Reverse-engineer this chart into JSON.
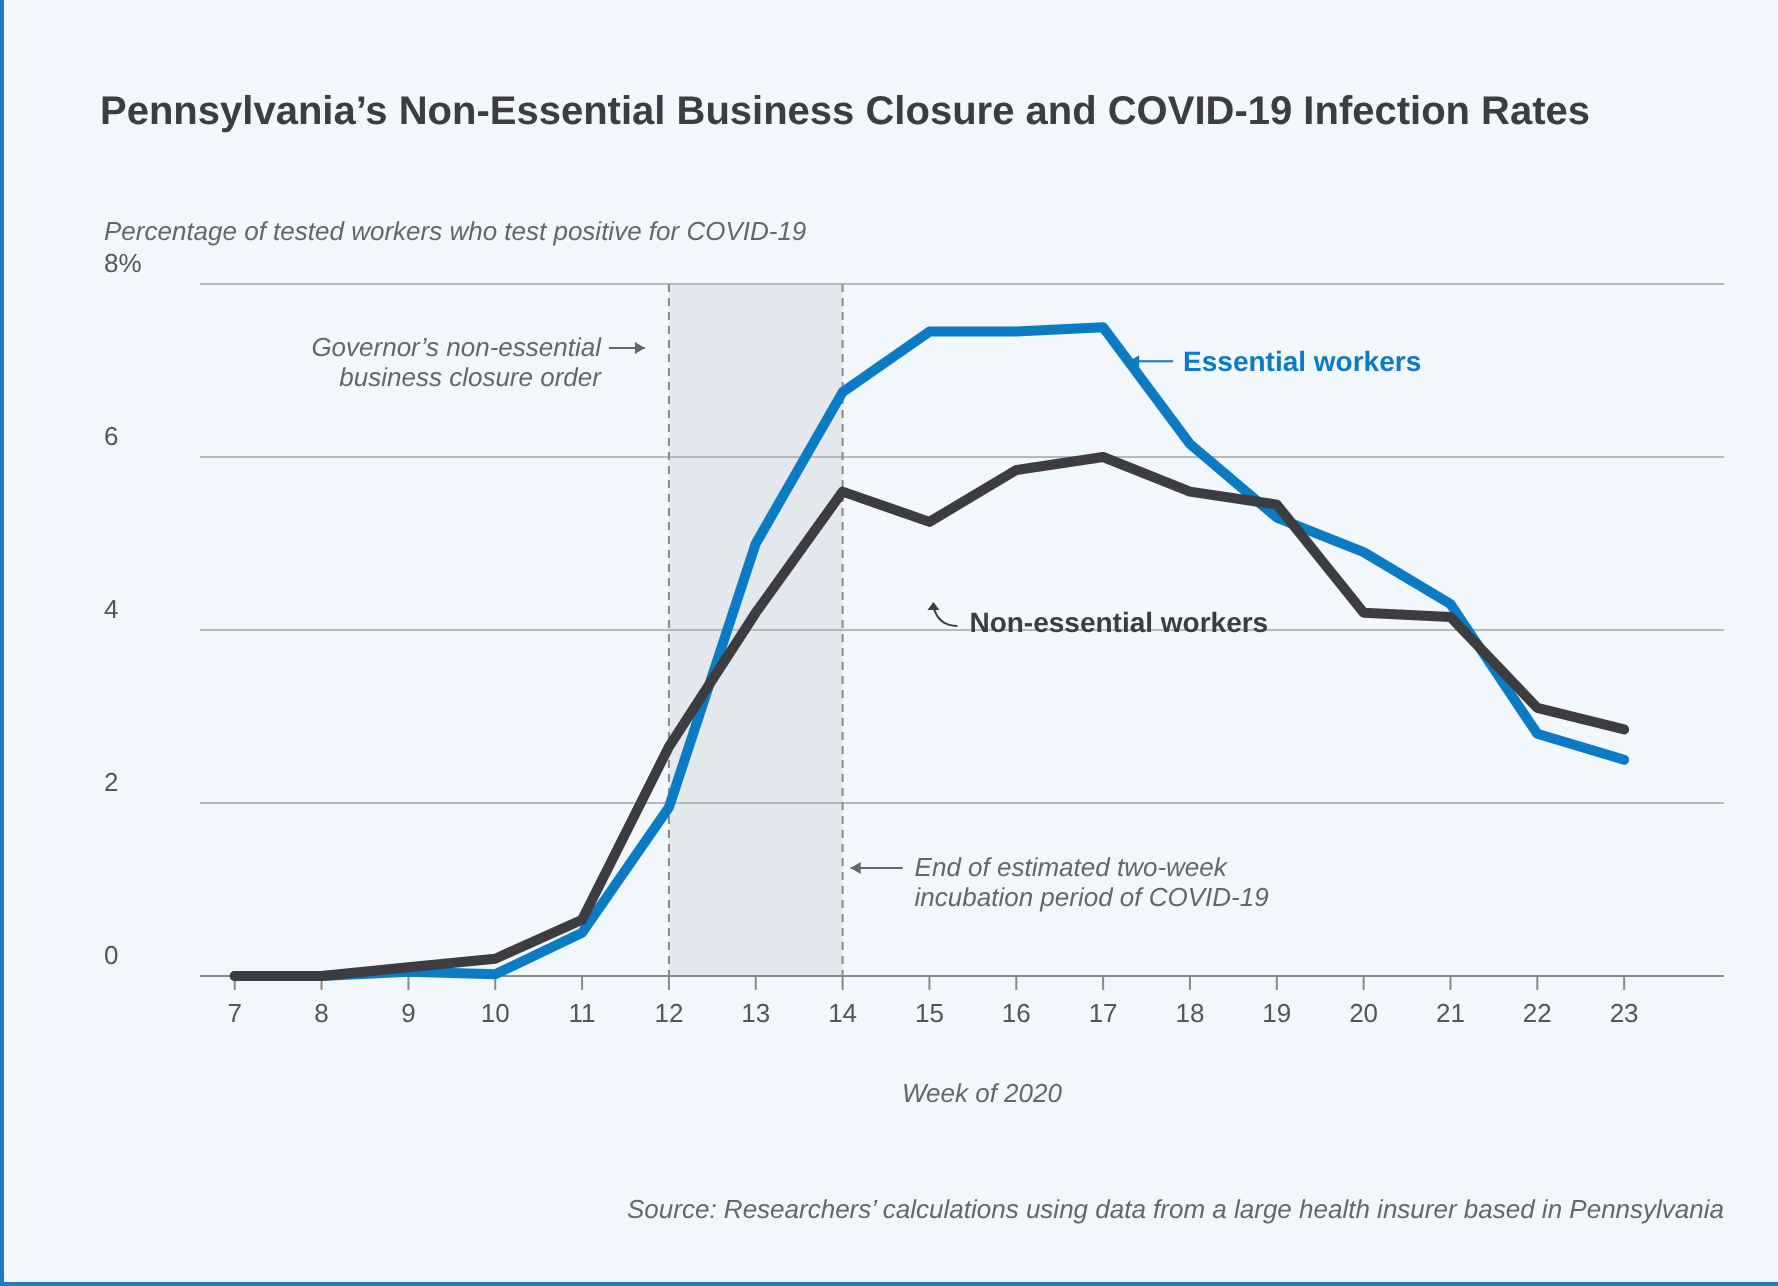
{
  "chart_data": {
    "type": "line",
    "title": "Pennsylvania’s Non-Essential Business Closure and COVID-19 Infection Rates",
    "ylabel": "Percentage of tested workers who test positive for COVID-19",
    "xlabel": "Week of 2020",
    "x": [
      7,
      8,
      9,
      10,
      11,
      12,
      13,
      14,
      15,
      16,
      17,
      18,
      19,
      20,
      21,
      22,
      23
    ],
    "series": [
      {
        "name": "Essential workers",
        "color": "#0a7bc4",
        "values": [
          0,
          0,
          0.05,
          0.02,
          0.5,
          1.95,
          5.0,
          6.75,
          7.45,
          7.45,
          7.5,
          6.15,
          5.3,
          4.9,
          4.3,
          2.8,
          2.5
        ]
      },
      {
        "name": "Non-essential workers",
        "color": "#3d3d3f",
        "values": [
          0,
          0,
          0.1,
          0.2,
          0.65,
          2.65,
          4.2,
          5.6,
          5.25,
          5.85,
          6.0,
          5.6,
          5.45,
          4.2,
          4.15,
          3.1,
          2.85
        ]
      }
    ],
    "xlim": [
      6.6,
      24.15
    ],
    "xticks": [
      7,
      8,
      9,
      10,
      11,
      12,
      13,
      14,
      15,
      16,
      17,
      18,
      19,
      20,
      21,
      22,
      23
    ],
    "ylim": [
      0,
      8
    ],
    "yticks": [
      0,
      2,
      4,
      6,
      {
        "value": 8,
        "label": "8%"
      }
    ],
    "grid": "y",
    "legend": "top right",
    "marker": "none",
    "line_style": "solid",
    "ref_lines": [
      {
        "axis": "x",
        "value": 12,
        "label": "Governor’s non-essential\nbusiness closure order",
        "color": "#8a8a8a",
        "line_style": "dashed"
      },
      {
        "axis": "x",
        "value": 14,
        "label": "End of estimated two-week\nincubation period of COVID-19",
        "color": "#8a8a8a",
        "line_style": "dashed"
      }
    ],
    "bands": [
      {
        "axis": "x",
        "from": 12,
        "to": 14,
        "color": "#e3e8ed"
      }
    ],
    "annotations": [
      "Source: Researchers’ calculations using data from a large health insurer based in Pennsylvania"
    ]
  }
}
